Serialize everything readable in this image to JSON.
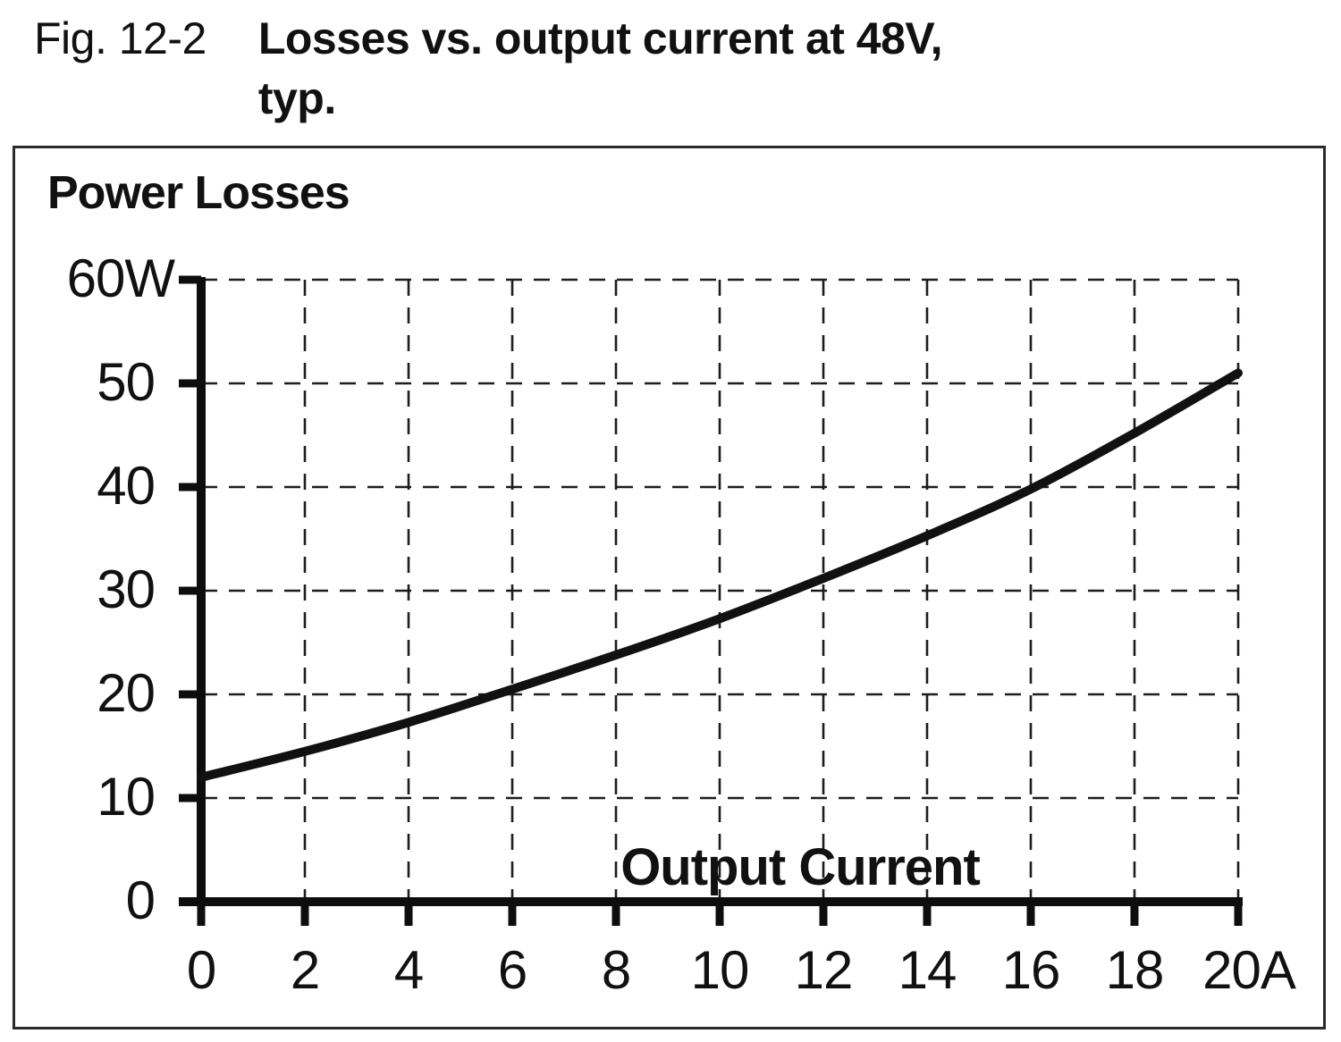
{
  "figure_caption": {
    "fig_label": "Fig. 12-2",
    "title_line1": "Losses vs. output current at 48V,",
    "title_line2": "typ."
  },
  "chart_data": {
    "type": "line",
    "title": "Power Losses",
    "xlabel": "Output Current",
    "x_unit": "A",
    "y_unit": "W",
    "x": [
      0,
      2,
      4,
      6,
      8,
      10,
      12,
      14,
      16,
      18,
      20
    ],
    "series": [
      {
        "name": "power-losses-at-48V",
        "values": [
          12,
          14.5,
          17.3,
          20.5,
          23.8,
          27.3,
          31.2,
          35.3,
          39.8,
          45.2,
          51
        ]
      }
    ],
    "xlim": [
      0,
      20
    ],
    "ylim": [
      0,
      60
    ],
    "xticks": [
      0,
      2,
      4,
      6,
      8,
      10,
      12,
      14,
      16,
      18,
      20
    ],
    "xtick_labels": [
      "0",
      "2",
      "4",
      "6",
      "8",
      "10",
      "12",
      "14",
      "16",
      "18",
      "20A"
    ],
    "yticks": [
      0,
      10,
      20,
      30,
      40,
      50,
      60
    ],
    "ytick_labels": [
      "0",
      "10",
      "20",
      "30",
      "40",
      "50",
      "60W"
    ],
    "grid": "dashed",
    "legend": "none",
    "colors": {
      "line": "#111111",
      "grid": "#1d1d1d",
      "axis": "#0d0d0d",
      "text": "#111111",
      "frame": "#2b2b2b",
      "background": "#ffffff"
    }
  }
}
